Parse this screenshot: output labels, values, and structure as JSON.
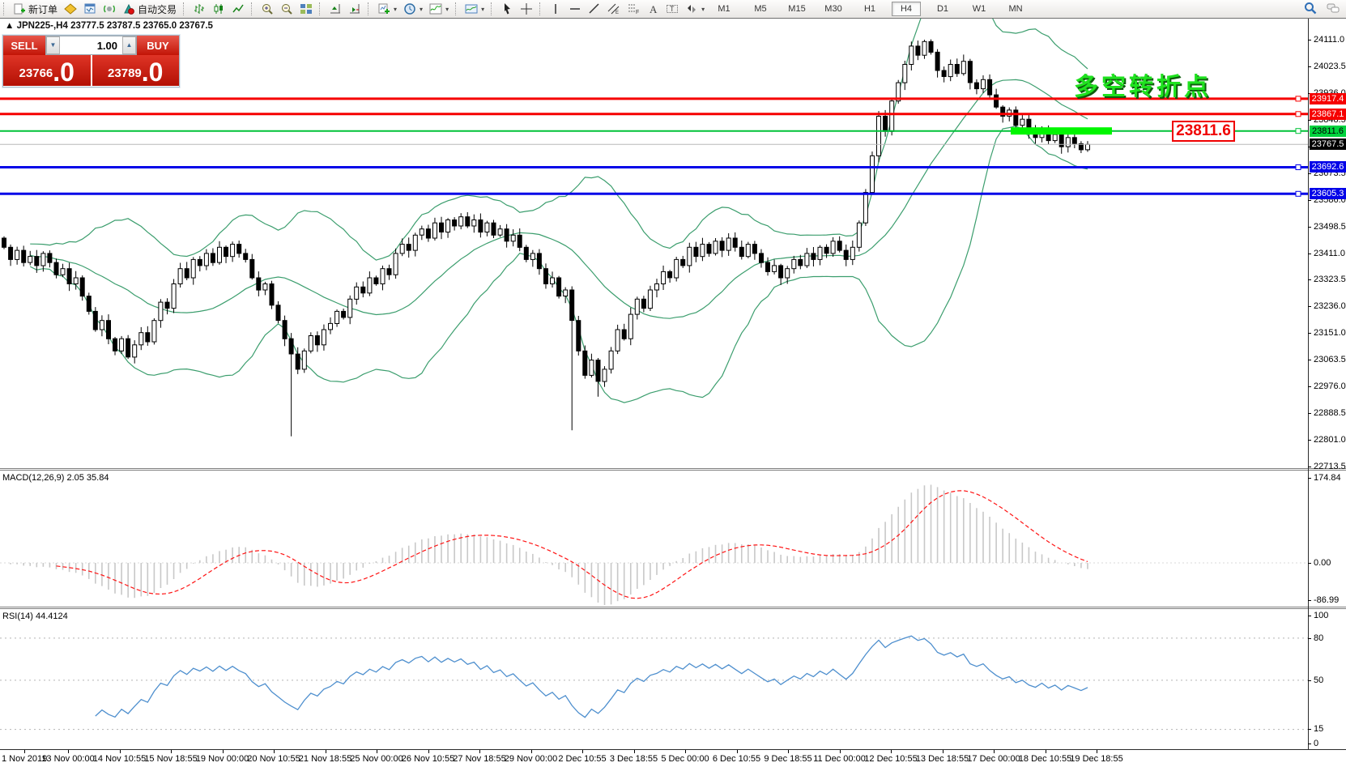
{
  "toolbar": {
    "new_order_label": "新订单",
    "auto_trading_label": "自动交易",
    "timeframes": [
      "M1",
      "M5",
      "M15",
      "M30",
      "H1",
      "H4",
      "D1",
      "W1",
      "MN"
    ],
    "active_timeframe": "H4"
  },
  "chart": {
    "symbol_marker": "▲",
    "title": "JPN225-,H4  23777.5 23787.5 23765.0 23767.5"
  },
  "trade_panel": {
    "sell_label": "SELL",
    "buy_label": "BUY",
    "volume": "1.00",
    "decrease_icon": "▼",
    "increase_icon": "▲",
    "sell_price_main": "23766",
    "sell_price_frac": ".0",
    "buy_price_main": "23789",
    "buy_price_frac": ".0"
  },
  "annotations": {
    "turning_point": "多空转折点",
    "price_box": "23811.6",
    "support_bar": {
      "price": 23811.6,
      "color": "#00f600"
    }
  },
  "levels": [
    {
      "value": 23917.4,
      "line_color": "#f60000",
      "line_width": 3,
      "tag_bg": "#f60000",
      "tag_fg": "#ffffff",
      "object": true
    },
    {
      "value": 23867.1,
      "line_color": "#f60000",
      "line_width": 3,
      "tag_bg": "#f60000",
      "tag_fg": "#ffffff",
      "object": true
    },
    {
      "value": 23811.6,
      "line_color": "#00c238",
      "line_width": 2,
      "tag_bg": "#00d33e",
      "tag_fg": "#000000",
      "object": true
    },
    {
      "value": 23767.5,
      "line_color": "#b8b8b8",
      "line_width": 1,
      "tag_bg": "#000000",
      "tag_fg": "#ffffff",
      "object": false
    },
    {
      "value": 23692.6,
      "line_color": "#0404e8",
      "line_width": 3,
      "tag_bg": "#0404e8",
      "tag_fg": "#ffffff",
      "object": true
    },
    {
      "value": 23605.3,
      "line_color": "#0404e8",
      "line_width": 3,
      "tag_bg": "#0404e8",
      "tag_fg": "#ffffff",
      "object": true
    }
  ],
  "price_axis_ticks": [
    "24111.0",
    "24023.5",
    "23936.0",
    "23848.5",
    "23761.0",
    "23673.5",
    "23586.0",
    "23498.5",
    "23411.0",
    "23323.5",
    "23236.0",
    "23151.0",
    "23063.5",
    "22976.0",
    "22888.5",
    "22801.0",
    "22713.5"
  ],
  "macd": {
    "label": "MACD(12,26,9) 2.05 35.84",
    "axis_labels": [
      "174.84",
      "0.00",
      "-86.99"
    ],
    "histogram_color": "#c8c8c8",
    "signal_color": "#ff1414"
  },
  "rsi": {
    "label": "RSI(14) 44.4124",
    "axis_labels": [
      "100",
      "80",
      "50",
      "15",
      "0"
    ],
    "levels": [
      80,
      50,
      15
    ],
    "line_color": "#4e8fce"
  },
  "time_axis": [
    "1 Nov 2019",
    "13 Nov 00:00",
    "14 Nov 10:55",
    "15 Nov 18:55",
    "19 Nov 00:00",
    "20 Nov 10:55",
    "21 Nov 18:55",
    "25 Nov 00:00",
    "26 Nov 10:55",
    "27 Nov 18:55",
    "29 Nov 00:00",
    "2 Dec 10:55",
    "3 Dec 18:55",
    "5 Dec 00:00",
    "6 Dec 10:55",
    "9 Dec 18:55",
    "11 Dec 00:00",
    "12 Dec 10:55",
    "13 Dec 18:55",
    "17 Dec 00:00",
    "18 Dec 10:55",
    "19 Dec 18:55"
  ],
  "icons": {
    "dropdown_caret": "▾"
  },
  "chart_data": {
    "type": "candlestick",
    "symbol": "JPN225",
    "timeframe": "H4",
    "price_range_top": 24111.0,
    "price_range_bottom": 22713.5,
    "bollinger": {
      "period": 20,
      "deviation": 2,
      "color": "#3c9e6e"
    },
    "first_open": 23460,
    "closes": [
      23430,
      23390,
      23420,
      23380,
      23400,
      23370,
      23410,
      23380,
      23340,
      23360,
      23310,
      23330,
      23270,
      23220,
      23160,
      23190,
      23130,
      23090,
      23130,
      23070,
      23110,
      23150,
      23120,
      23190,
      23250,
      23230,
      23310,
      23360,
      23330,
      23390,
      23370,
      23410,
      23380,
      23430,
      23400,
      23440,
      23410,
      23390,
      23330,
      23290,
      23310,
      23240,
      23190,
      23130,
      23080,
      23030,
      23090,
      23140,
      23110,
      23160,
      23180,
      23220,
      23200,
      23260,
      23300,
      23280,
      23330,
      23310,
      23360,
      23340,
      23410,
      23440,
      23420,
      23470,
      23490,
      23460,
      23510,
      23480,
      23520,
      23500,
      23530,
      23500,
      23520,
      23480,
      23510,
      23470,
      23490,
      23450,
      23470,
      23430,
      23390,
      23410,
      23360,
      23310,
      23330,
      23270,
      23290,
      23190,
      23090,
      23010,
      23060,
      22990,
      23030,
      23090,
      23160,
      23130,
      23210,
      23260,
      23230,
      23290,
      23310,
      23350,
      23330,
      23390,
      23370,
      23430,
      23400,
      23440,
      23410,
      23450,
      23420,
      23460,
      23430,
      23400,
      23440,
      23410,
      23380,
      23350,
      23370,
      23330,
      23360,
      23390,
      23370,
      23410,
      23390,
      23430,
      23410,
      23450,
      23420,
      23390,
      23430,
      23510,
      23610,
      23730,
      23860,
      23810,
      23910,
      23970,
      24030,
      24090,
      24060,
      24105,
      24070,
      24010,
      23990,
      24030,
      24000,
      24040,
      23970,
      23950,
      23980,
      23930,
      23890,
      23860,
      23880,
      23830,
      23850,
      23810,
      23790,
      23820,
      23780,
      23800,
      23760,
      23790,
      23770,
      23750,
      23767.5
    ],
    "high_overrides": {
      "141": 24111
    },
    "low_overrides": {
      "44": 22810,
      "87": 22830,
      "91": 22940
    }
  }
}
